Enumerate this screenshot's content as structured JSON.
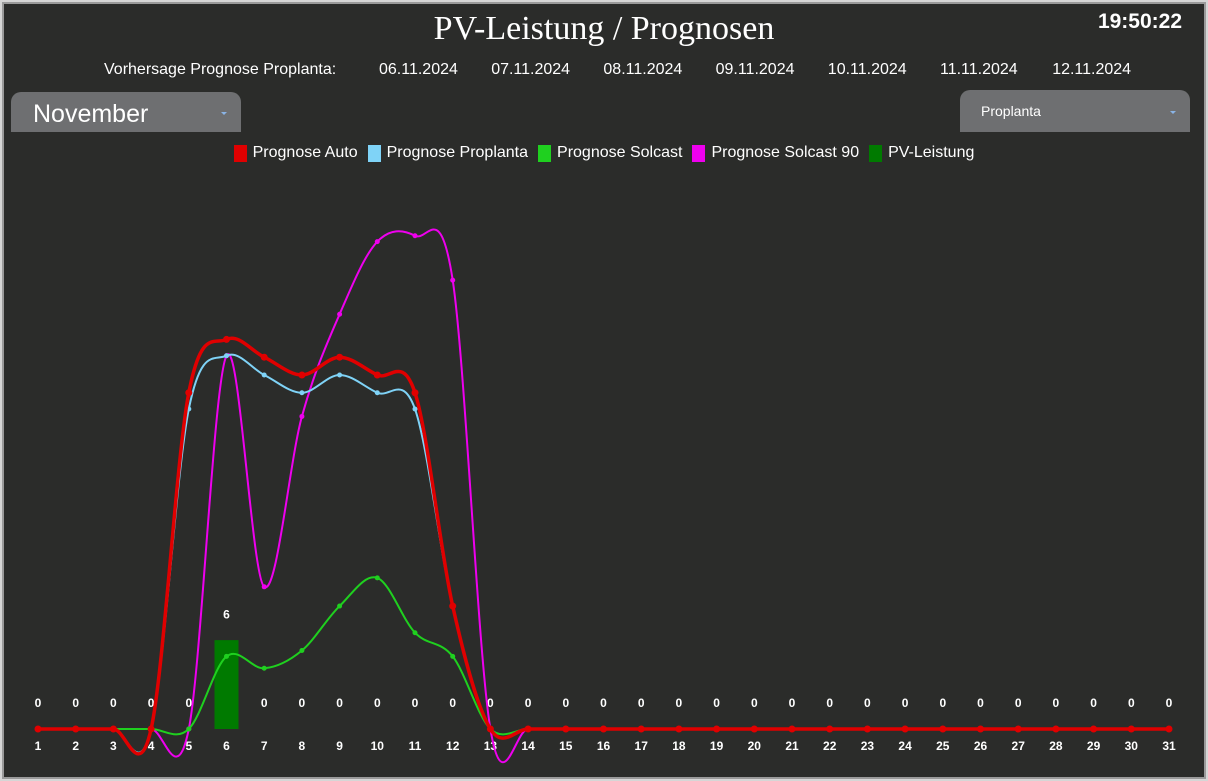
{
  "clock": "19:50:22",
  "forecast": {
    "label": "Vorhersage Prognose Proplanta:",
    "dates": [
      "06.11.2024",
      "07.11.2024",
      "08.11.2024",
      "09.11.2024",
      "10.11.2024",
      "11.11.2024",
      "12.11.2024"
    ]
  },
  "month_select": "November",
  "source_select": "Proplanta",
  "chart_data": {
    "type": "line",
    "title": "PV-Leistung / Prognosen",
    "categories": [
      1,
      2,
      3,
      4,
      5,
      6,
      7,
      8,
      9,
      10,
      11,
      12,
      13,
      14,
      15,
      16,
      17,
      18,
      19,
      20,
      21,
      22,
      23,
      24,
      25,
      26,
      27,
      28,
      29,
      30,
      31
    ],
    "ylim": [
      0,
      37.4
    ],
    "series": [
      {
        "name": "Prognose Auto",
        "color": "#e00000",
        "values": [
          0,
          0,
          0,
          0,
          22.7,
          26.3,
          25.1,
          23.9,
          25.1,
          23.9,
          22.7,
          8.3,
          0,
          0,
          0,
          0,
          0,
          0,
          0,
          0,
          0,
          0,
          0,
          0,
          0,
          0,
          0,
          0,
          0,
          0,
          0
        ]
      },
      {
        "name": "Prognose Proplanta",
        "color": "#7fd3f7",
        "values": [
          0,
          0,
          0,
          0,
          21.6,
          25.2,
          23.9,
          22.7,
          23.9,
          22.7,
          21.6,
          8.3,
          0,
          0,
          0,
          0,
          0,
          0,
          0,
          0,
          0,
          0,
          0,
          0,
          0,
          0,
          0,
          0,
          0,
          0,
          0
        ]
      },
      {
        "name": "Prognose Solcast",
        "color": "#1fd01f",
        "values": [
          0,
          0,
          0,
          0,
          0,
          4.9,
          4.1,
          5.3,
          8.3,
          10.2,
          6.5,
          4.9,
          0,
          0,
          0,
          0,
          0,
          0,
          0,
          0,
          0,
          0,
          0,
          0,
          0,
          0,
          0,
          0,
          0,
          0,
          0
        ]
      },
      {
        "name": "Prognose Solcast 90",
        "color": "#ee00ee",
        "values": [
          0,
          0,
          0,
          0,
          0,
          25.2,
          9.6,
          21.1,
          28.0,
          32.9,
          33.3,
          30.3,
          0,
          0,
          0,
          0,
          0,
          0,
          0,
          0,
          0,
          0,
          0,
          0,
          0,
          0,
          0,
          0,
          0,
          0,
          0
        ]
      },
      {
        "name": "PV-Leistung",
        "color": "#007a00",
        "type": "bar",
        "values": [
          0,
          0,
          0,
          0,
          0,
          6,
          0,
          0,
          0,
          0,
          0,
          0,
          0,
          0,
          0,
          0,
          0,
          0,
          0,
          0,
          0,
          0,
          0,
          0,
          0,
          0,
          0,
          0,
          0,
          0,
          0
        ]
      }
    ]
  }
}
